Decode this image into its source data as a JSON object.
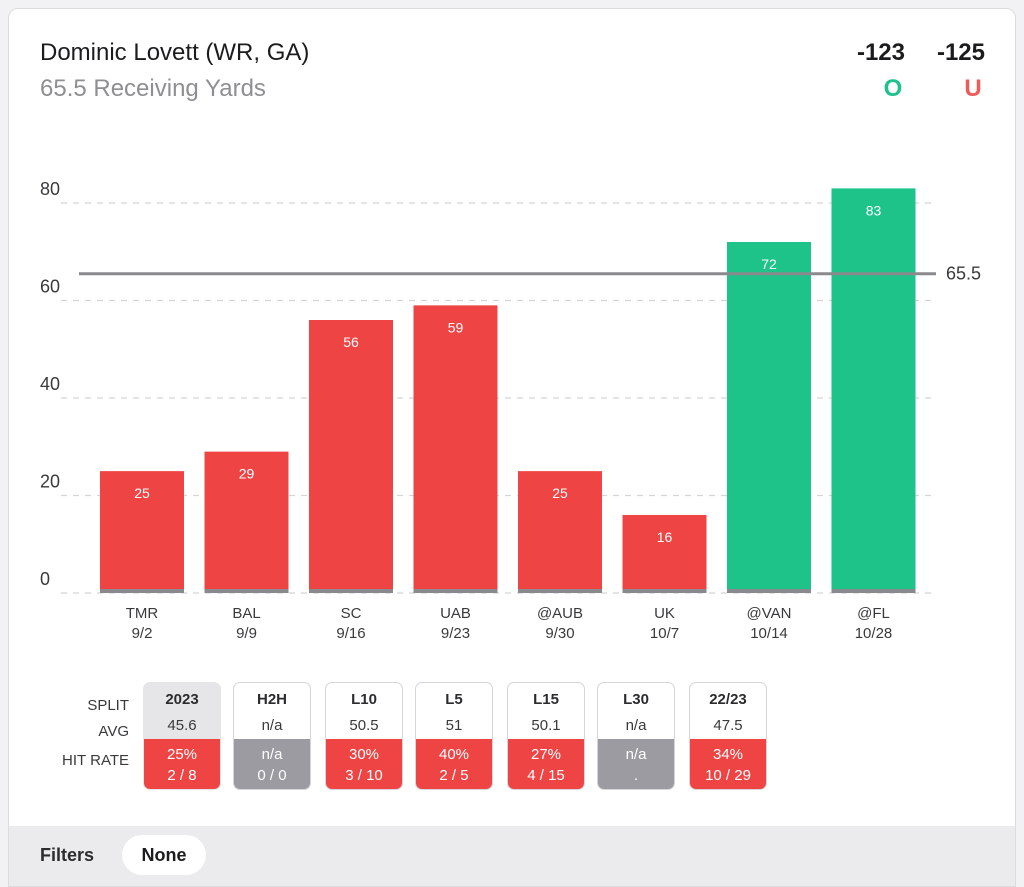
{
  "header": {
    "player": "Dominic Lovett (WR, GA)",
    "prop": "65.5 Receiving Yards",
    "over_odds": "-123",
    "under_odds": "-125",
    "over_label": "O",
    "under_label": "U"
  },
  "colors": {
    "over": "#1ec38a",
    "under": "#ef4444",
    "na": "#9b9ba1",
    "line": "#8a8a8e"
  },
  "chart_data": {
    "type": "bar",
    "categories": [
      "TMR",
      "BAL",
      "SC",
      "UAB",
      "@AUB",
      "UK",
      "@VAN",
      "@FL"
    ],
    "dates": [
      "9/2",
      "9/9",
      "9/16",
      "9/23",
      "9/30",
      "10/7",
      "10/14",
      "10/28"
    ],
    "values": [
      25,
      29,
      56,
      59,
      25,
      16,
      72,
      83
    ],
    "line_value": 65.5,
    "line_label": "65.5",
    "y_ticks": [
      0,
      20,
      40,
      60,
      80
    ],
    "ylim": [
      0,
      80
    ],
    "grid": true
  },
  "splits": {
    "row_labels": {
      "split": "SPLIT",
      "avg": "AVG",
      "hit": "HIT RATE"
    },
    "items": [
      {
        "name": "2023",
        "avg": "45.6",
        "pct": "25%",
        "count": "2 / 8",
        "status": "under",
        "active": true
      },
      {
        "name": "H2H",
        "avg": "n/a",
        "pct": "n/a",
        "count": "0 / 0",
        "status": "na",
        "active": false
      },
      {
        "name": "L10",
        "avg": "50.5",
        "pct": "30%",
        "count": "3 / 10",
        "status": "under",
        "active": false
      },
      {
        "name": "L5",
        "avg": "51",
        "pct": "40%",
        "count": "2 / 5",
        "status": "under",
        "active": false
      },
      {
        "name": "L15",
        "avg": "50.1",
        "pct": "27%",
        "count": "4 / 15",
        "status": "under",
        "active": false
      },
      {
        "name": "L30",
        "avg": "n/a",
        "pct": "n/a",
        "count": ".",
        "status": "na",
        "active": false
      },
      {
        "name": "22/23",
        "avg": "47.5",
        "pct": "34%",
        "count": "10 / 29",
        "status": "under",
        "active": false
      }
    ]
  },
  "filters": {
    "label": "Filters",
    "value": "None"
  }
}
